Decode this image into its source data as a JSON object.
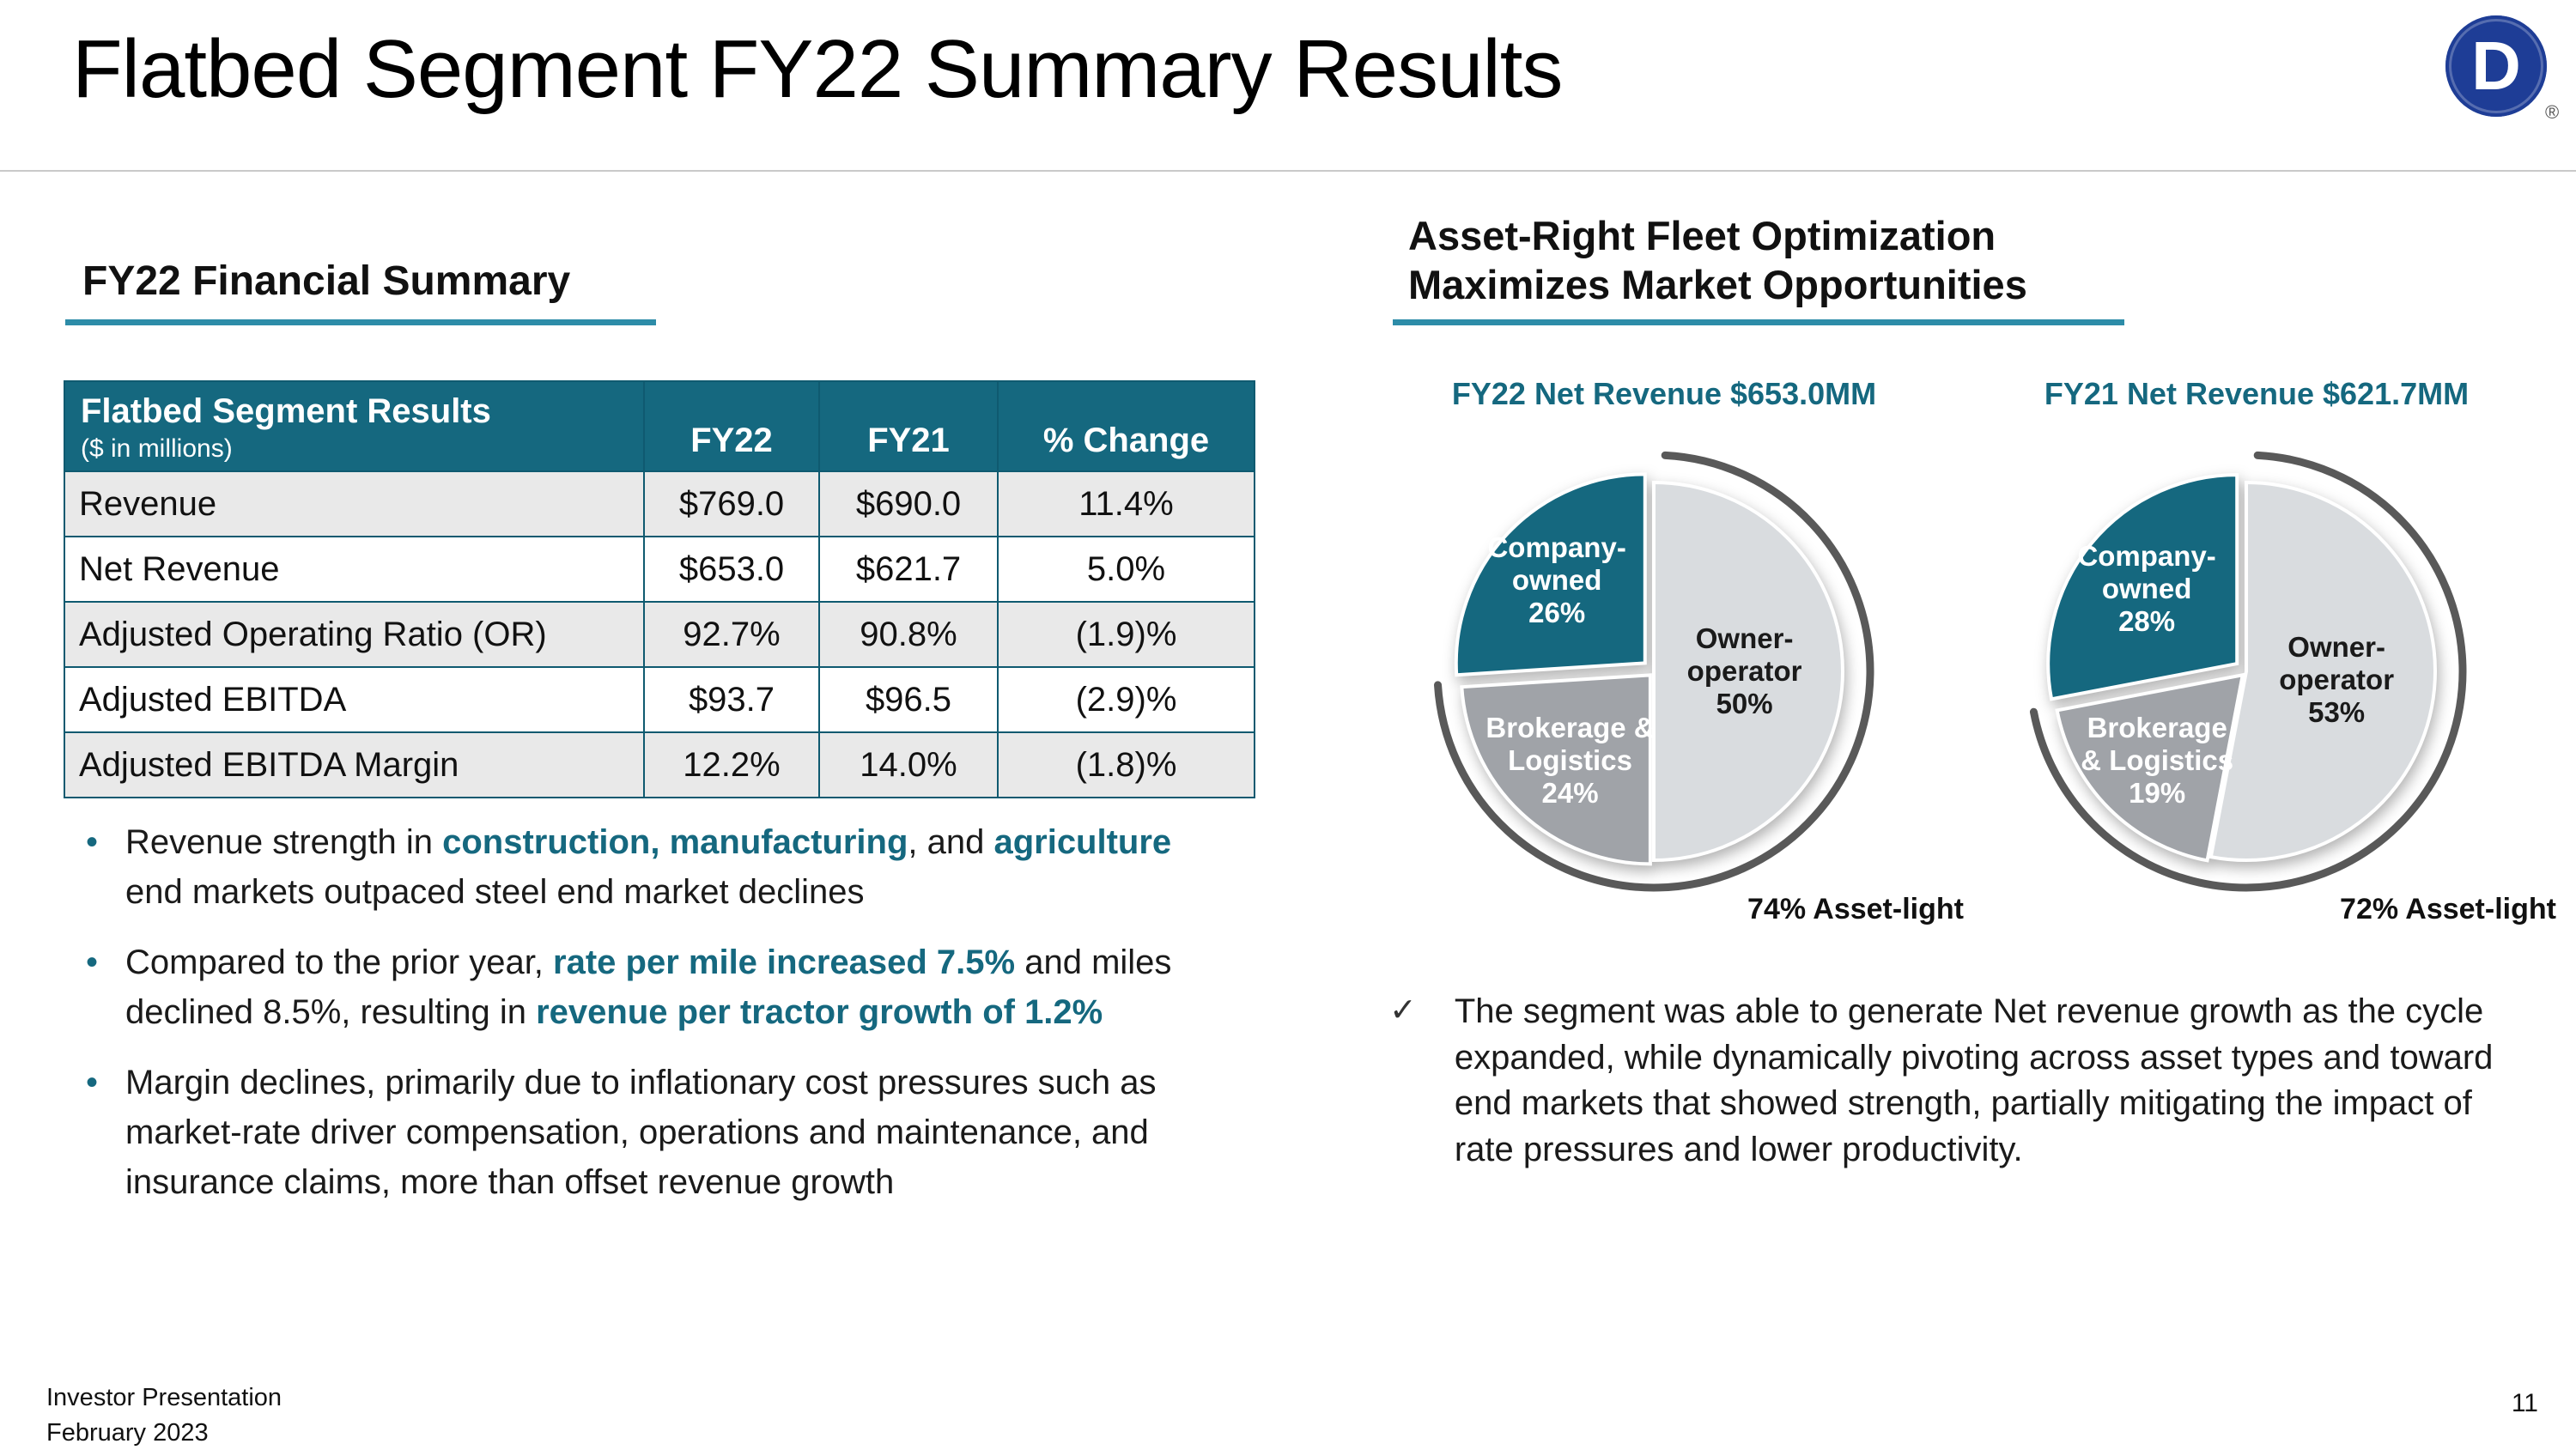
{
  "header": {
    "title": "Flatbed Segment FY22 Summary Results",
    "logo_letter": "D",
    "registered_mark": "®"
  },
  "left": {
    "heading": "FY22 Financial Summary",
    "table": {
      "title": "Flatbed Segment Results",
      "subtitle": "($ in millions)",
      "columns": [
        "FY22",
        "FY21",
        "% Change"
      ],
      "rows": [
        {
          "label": "Revenue",
          "fy22": "$769.0",
          "fy21": "$690.0",
          "change": "11.4%"
        },
        {
          "label": "Net Revenue",
          "fy22": "$653.0",
          "fy21": "$621.7",
          "change": "5.0%"
        },
        {
          "label": "Adjusted Operating Ratio (OR)",
          "fy22": "92.7%",
          "fy21": "90.8%",
          "change": "(1.9)%"
        },
        {
          "label": "Adjusted EBITDA",
          "fy22": "$93.7",
          "fy21": "$96.5",
          "change": "(2.9)%"
        },
        {
          "label": "Adjusted EBITDA Margin",
          "fy22": "12.2%",
          "fy21": "14.0%",
          "change": "(1.8)%"
        }
      ]
    },
    "bullets": [
      [
        {
          "t": "Revenue strength in ",
          "em": false
        },
        {
          "t": "construction, manufacturing",
          "em": true
        },
        {
          "t": ", and ",
          "em": false
        },
        {
          "t": "agriculture",
          "em": true
        },
        {
          "t": " end markets outpaced steel end market declines",
          "em": false
        }
      ],
      [
        {
          "t": "Compared to the prior year, ",
          "em": false
        },
        {
          "t": "rate per mile increased 7.5%",
          "em": true
        },
        {
          "t": " and miles declined 8.5%, resulting in ",
          "em": false
        },
        {
          "t": "revenue per tractor growth of 1.2%",
          "em": true
        }
      ],
      [
        {
          "t": "Margin declines, primarily due to inflationary cost pressures such as market-rate driver compensation, operations and maintenance, and insurance claims, more than offset revenue growth",
          "em": false
        }
      ]
    ]
  },
  "right": {
    "heading_line1": "Asset-Right Fleet Optimization",
    "heading_line2": "Maximizes Market Opportunities",
    "check_mark": "✓",
    "check_bullet": "The segment was able to generate Net revenue growth as the cycle expanded, while dynamically pivoting across asset types and toward end markets that showed strength, partially mitigating the impact of rate pressures and lower productivity."
  },
  "chart_data": [
    {
      "type": "pie",
      "title": "FY22 Net Revenue $653.0MM",
      "annotation": "74% Asset-light",
      "legend_position": "none",
      "slices": [
        {
          "name": "Owner-operator",
          "value": 50,
          "label_lines": [
            "Owner-",
            "operator",
            "50%"
          ],
          "color": "#D9DCDF",
          "text_color": "#1a1a1a",
          "explode": 0,
          "label_r": 0.48
        },
        {
          "name": "Brokerage & Logistics",
          "value": 24,
          "label_lines": [
            "Brokerage &",
            "Logistics",
            "24%"
          ],
          "color": "#A0A3A8",
          "text_color": "#ffffff",
          "explode": 6,
          "label_r": 0.62
        },
        {
          "name": "Company-owned",
          "value": 26,
          "label_lines": [
            "Company-",
            "owned",
            "26%"
          ],
          "color": "#15687F",
          "text_color": "#ffffff",
          "explode": 14,
          "label_r": 0.64
        }
      ]
    },
    {
      "type": "pie",
      "title": "FY21 Net Revenue $621.7MM",
      "annotation": "72% Asset-light",
      "legend_position": "none",
      "slices": [
        {
          "name": "Owner-operator",
          "value": 53,
          "label_lines": [
            "Owner-",
            "operator",
            "53%"
          ],
          "color": "#D9DCDF",
          "text_color": "#1a1a1a",
          "explode": 0,
          "label_r": 0.48
        },
        {
          "name": "Brokerage & Logistics",
          "value": 19,
          "label_lines": [
            "Brokerage",
            "& Logistics",
            "19%"
          ],
          "color": "#A0A3A8",
          "text_color": "#ffffff",
          "explode": 6,
          "label_r": 0.64
        },
        {
          "name": "Company-owned",
          "value": 28,
          "label_lines": [
            "Company-",
            "owned",
            "28%"
          ],
          "color": "#15687F",
          "text_color": "#ffffff",
          "explode": 14,
          "label_r": 0.62
        }
      ]
    }
  ],
  "footer": {
    "line1": "Investor Presentation",
    "line2": "February 2023",
    "page": "11"
  },
  "colors": {
    "accent_teal": "#15687F",
    "underline_teal": "#2D8CA8",
    "logo_blue": "#1E3D96",
    "arc_gray": "#595959",
    "row_alt_gray": "#E9E9E9"
  }
}
